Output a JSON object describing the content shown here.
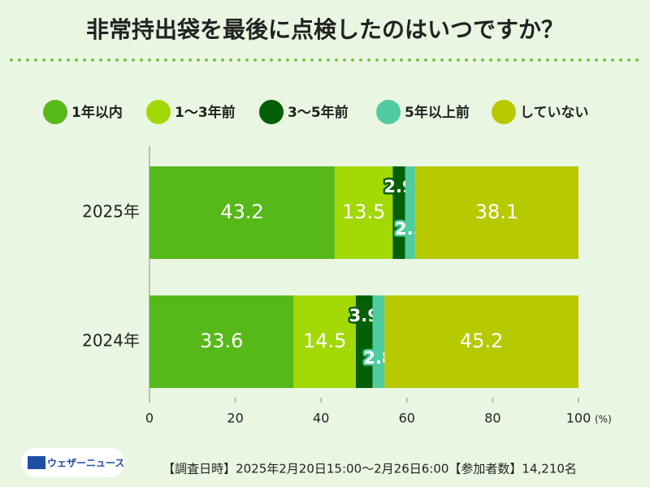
{
  "chart_data": {
    "type": "stacked-bar-horizontal",
    "title": "非常持出袋を最後に点検したのはいつですか？",
    "categories": [
      "2025年",
      "2024年"
    ],
    "series": [
      {
        "name": "1年以内",
        "color": "#57b81a",
        "values": [
          43.2,
          33.6
        ]
      },
      {
        "name": "1〜3年前",
        "color": "#a2d804",
        "values": [
          13.5,
          14.5
        ]
      },
      {
        "name": "3〜5年前",
        "color": "#055f07",
        "values": [
          2.9,
          3.9
        ]
      },
      {
        "name": "5年以上前",
        "color": "#4fcc9f",
        "values": [
          2.3,
          2.8
        ]
      },
      {
        "name": "していない",
        "color": "#b7c900",
        "values": [
          38.1,
          45.2
        ]
      }
    ],
    "xlim": [
      0,
      100
    ],
    "xticks": [
      0,
      20,
      40,
      60,
      80,
      100
    ],
    "xlabel": "(%)",
    "logo": "ウェザーニュース",
    "note": "【調査日時】2025年2月20日15:00〜2月26日6:00【参加者数】14,210名"
  }
}
